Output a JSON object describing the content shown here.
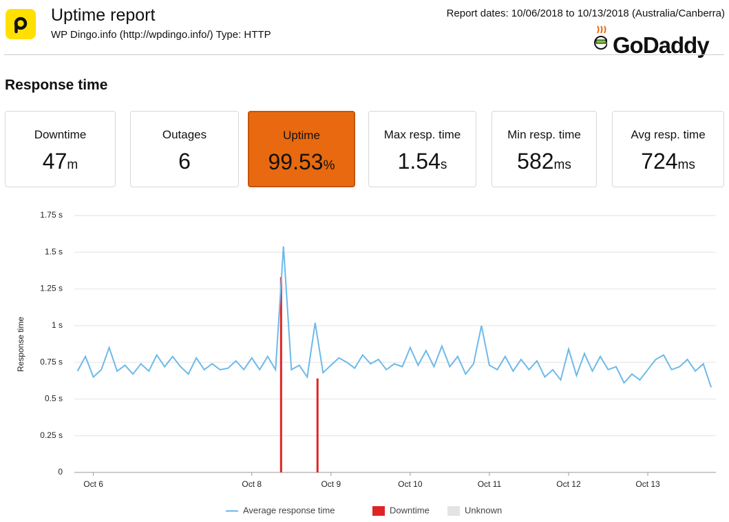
{
  "header": {
    "title": "Uptime report",
    "subtitle": "WP Dingo.info (http://wpdingo.info/) Type: HTTP",
    "report_dates": "Report dates: 10/06/2018 to 10/13/2018 (Australia/Canberra)",
    "brand": "GoDaddy"
  },
  "section_title": "Response time",
  "stats": [
    {
      "label": "Downtime",
      "value": "47",
      "unit": "m"
    },
    {
      "label": "Outages",
      "value": "6",
      "unit": ""
    },
    {
      "label": "Uptime",
      "value": "99.53",
      "unit": "%",
      "highlight": true
    },
    {
      "label": "Max resp. time",
      "value": "1.54",
      "unit": "s"
    },
    {
      "label": "Min resp. time",
      "value": "582",
      "unit": "ms"
    },
    {
      "label": "Avg resp. time",
      "value": "724",
      "unit": "ms"
    }
  ],
  "chart_data": {
    "type": "line",
    "y_label": "Response time",
    "grid": true,
    "xlim": [
      5.76,
      13.86
    ],
    "xticks": [
      {
        "value": 6,
        "label": "Oct 6"
      },
      {
        "value": 8,
        "label": "Oct 8"
      },
      {
        "value": 9,
        "label": "Oct 9"
      },
      {
        "value": 10,
        "label": "Oct 10"
      },
      {
        "value": 11,
        "label": "Oct 11"
      },
      {
        "value": 12,
        "label": "Oct 12"
      },
      {
        "value": 13,
        "label": "Oct 13"
      }
    ],
    "ylim": [
      0,
      1.75
    ],
    "yticks": [
      0,
      {
        "value": 0.25,
        "label": "0.25 s"
      },
      {
        "value": 0.5,
        "label": "0.5 s"
      },
      {
        "value": 0.75,
        "label": "0.75 s"
      },
      {
        "value": 1,
        "label": "1 s"
      },
      {
        "value": 1.25,
        "label": "1.25 s"
      },
      {
        "value": 1.5,
        "label": "1.5 s"
      },
      {
        "value": 1.75,
        "label": "1.75 s"
      }
    ],
    "series": [
      {
        "name": "Average response time",
        "type": "line",
        "color": "#6cb9ea",
        "x": [
          5.8,
          5.9,
          6.0,
          6.1,
          6.2,
          6.3,
          6.4,
          6.5,
          6.6,
          6.7,
          6.8,
          6.9,
          7.0,
          7.1,
          7.2,
          7.3,
          7.4,
          7.5,
          7.6,
          7.7,
          7.8,
          7.9,
          8.0,
          8.1,
          8.2,
          8.3,
          8.4,
          8.5,
          8.6,
          8.7,
          8.8,
          8.9,
          9.0,
          9.1,
          9.2,
          9.3,
          9.4,
          9.5,
          9.6,
          9.7,
          9.8,
          9.9,
          10.0,
          10.1,
          10.2,
          10.3,
          10.4,
          10.5,
          10.6,
          10.7,
          10.8,
          10.9,
          11.0,
          11.1,
          11.2,
          11.3,
          11.4,
          11.5,
          11.6,
          11.7,
          11.8,
          11.9,
          12.0,
          12.1,
          12.2,
          12.3,
          12.4,
          12.5,
          12.6,
          12.7,
          12.8,
          12.9,
          13.0,
          13.1,
          13.2,
          13.3,
          13.4,
          13.5,
          13.6,
          13.7,
          13.8
        ],
        "values": [
          0.69,
          0.79,
          0.65,
          0.7,
          0.85,
          0.69,
          0.73,
          0.67,
          0.74,
          0.69,
          0.8,
          0.72,
          0.79,
          0.72,
          0.67,
          0.78,
          0.7,
          0.74,
          0.7,
          0.71,
          0.76,
          0.7,
          0.78,
          0.7,
          0.79,
          0.7,
          1.54,
          0.7,
          0.73,
          0.65,
          1.02,
          0.68,
          0.73,
          0.78,
          0.75,
          0.71,
          0.8,
          0.74,
          0.77,
          0.7,
          0.74,
          0.72,
          0.85,
          0.73,
          0.83,
          0.72,
          0.86,
          0.72,
          0.79,
          0.67,
          0.74,
          1.0,
          0.73,
          0.7,
          0.79,
          0.69,
          0.77,
          0.7,
          0.76,
          0.65,
          0.7,
          0.63,
          0.84,
          0.66,
          0.81,
          0.69,
          0.79,
          0.7,
          0.72,
          0.61,
          0.67,
          0.63,
          0.7,
          0.77,
          0.8,
          0.7,
          0.72,
          0.77,
          0.69,
          0.74,
          0.58
        ]
      },
      {
        "name": "Downtime",
        "type": "bar",
        "color": "#e02424",
        "x": [
          8.37,
          8.83
        ],
        "values": [
          1.33,
          0.64
        ]
      },
      {
        "name": "Unknown",
        "type": "bar",
        "color": "#e3e3e3",
        "x": [],
        "values": []
      }
    ]
  }
}
